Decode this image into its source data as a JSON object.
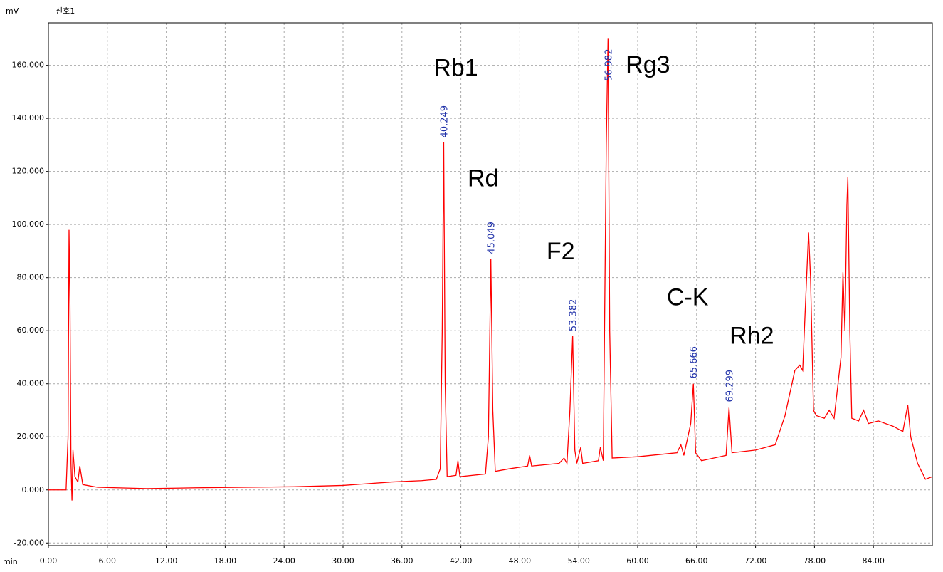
{
  "chart_data": {
    "type": "line",
    "y_label": "mV",
    "x_label": "min",
    "grid": true,
    "xlim": [
      0,
      90
    ],
    "ylim": [
      -21,
      176
    ],
    "xticks": [
      {
        "value": 0,
        "label": "0.00"
      },
      {
        "value": 6,
        "label": "6.00"
      },
      {
        "value": 12,
        "label": "12.00"
      },
      {
        "value": 18,
        "label": "18.00"
      },
      {
        "value": 24,
        "label": "24.00"
      },
      {
        "value": 30,
        "label": "30.00"
      },
      {
        "value": 36,
        "label": "36.00"
      },
      {
        "value": 42,
        "label": "42.00"
      },
      {
        "value": 48,
        "label": "48.00"
      },
      {
        "value": 54,
        "label": "54.00"
      },
      {
        "value": 60,
        "label": "60.00"
      },
      {
        "value": 66,
        "label": "66.00"
      },
      {
        "value": 72,
        "label": "72.00"
      },
      {
        "value": 78,
        "label": "78.00"
      },
      {
        "value": 84,
        "label": "84.00"
      }
    ],
    "yticks": [
      {
        "value": -20,
        "label": "-20.000"
      },
      {
        "value": 0,
        "label": "0.000"
      },
      {
        "value": 20,
        "label": "20.000"
      },
      {
        "value": 40,
        "label": "40.000"
      },
      {
        "value": 60,
        "label": "60.000"
      },
      {
        "value": 80,
        "label": "80.000"
      },
      {
        "value": 100,
        "label": "100.000"
      },
      {
        "value": 120,
        "label": "120.000"
      },
      {
        "value": 140,
        "label": "140.000"
      },
      {
        "value": 160,
        "label": "160.000"
      }
    ],
    "x": [
      0,
      1.8,
      2.0,
      2.1,
      2.2,
      2.3,
      2.4,
      2.5,
      2.7,
      3.0,
      3.2,
      3.5,
      5,
      10,
      15,
      20,
      25,
      30,
      35,
      38,
      39.5,
      39.9,
      40.1,
      40.25,
      40.4,
      40.6,
      41.5,
      41.7,
      41.9,
      44.5,
      44.8,
      45.05,
      45.25,
      45.5,
      47,
      48.8,
      49,
      49.2,
      52,
      52.5,
      52.8,
      53.1,
      53.38,
      53.6,
      53.8,
      54.2,
      54.4,
      56,
      56.2,
      56.5,
      56.8,
      56.98,
      57.15,
      57.4,
      60,
      64,
      64.4,
      64.7,
      65.4,
      65.67,
      65.9,
      66.5,
      69,
      69.3,
      69.6,
      72,
      74,
      75,
      76,
      76.5,
      76.8,
      77.2,
      77.4,
      77.6,
      77.9,
      78.2,
      79,
      79.5,
      80,
      80.7,
      80.9,
      81.1,
      81.3,
      81.4,
      81.6,
      81.8,
      82.5,
      83,
      83.5,
      84.5,
      86,
      87,
      87.5,
      87.8,
      88.5,
      89.3,
      90
    ],
    "series": [
      {
        "name": "신호1",
        "color": "#ff0000",
        "values": [
          0,
          0,
          20,
          98,
          70,
          10,
          -4,
          15,
          5,
          3,
          9,
          2,
          1,
          0.5,
          0.8,
          1,
          1.2,
          1.7,
          3,
          3.5,
          4,
          8,
          60,
          131,
          40,
          5,
          5.5,
          11,
          5,
          6,
          20,
          87,
          30,
          7,
          8,
          9,
          13,
          9,
          10,
          12,
          10,
          30,
          58,
          15,
          10,
          16,
          10,
          11,
          16,
          11,
          130,
          170,
          60,
          12,
          12.5,
          14,
          17,
          13,
          25,
          40,
          14,
          11,
          13,
          31,
          14,
          15,
          17,
          28,
          45,
          47,
          45,
          80,
          97,
          80,
          30,
          28,
          27,
          30,
          27,
          50,
          82,
          60,
          107,
          118,
          60,
          27,
          26,
          30,
          25,
          26,
          24,
          22,
          32,
          20,
          10,
          4,
          5
        ]
      }
    ],
    "peaks": [
      {
        "name": "Rb1",
        "time": 40.249
      },
      {
        "name": "Rd",
        "time": 45.049
      },
      {
        "name": "F2",
        "time": 53.382
      },
      {
        "name": "Rg3",
        "time": 56.982
      },
      {
        "name": "C-K",
        "time": 65.666
      },
      {
        "name": "Rh2",
        "time": 69.299
      }
    ]
  }
}
